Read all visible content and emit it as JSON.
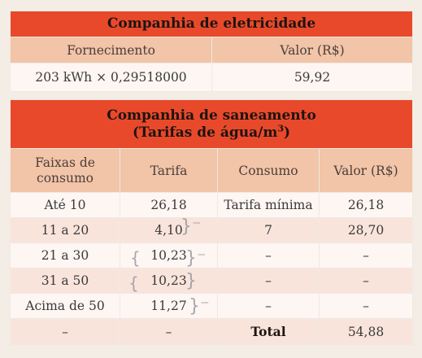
{
  "electricity": {
    "title": "Companhia de eletricidade",
    "headers": [
      "Fornecimento",
      "Valor (R$)"
    ],
    "row": [
      "203 kWh × 0,29518000",
      "59,92"
    ]
  },
  "water": {
    "title_line1": "Companhia de saneamento",
    "title_line2_prefix": "(Tarifas de água/m",
    "title_line2_sup": "3",
    "title_line2_suffix": ")",
    "headers": {
      "range_line1": "Faixas de",
      "range_line2": "consumo",
      "rate": "Tarifa",
      "consumption": "Consumo",
      "value": "Valor (R$)"
    },
    "rows": [
      {
        "range": "Até 10",
        "rate": "26,18",
        "consumption": "Tarifa mínima",
        "value": "26,18"
      },
      {
        "range": "11 a 20",
        "rate": "4,10",
        "consumption": "7",
        "value": "28,70"
      },
      {
        "range": "21 a 30",
        "rate": "10,23",
        "consumption": "–",
        "value": "–"
      },
      {
        "range": "31 a 50",
        "rate": "10,23",
        "consumption": "–",
        "value": "–"
      },
      {
        "range": "Acima de 50",
        "rate": "11,27",
        "consumption": "–",
        "value": "–"
      }
    ],
    "total_row": {
      "range": "–",
      "rate": "–",
      "label": "Total",
      "value": "54,88"
    }
  }
}
